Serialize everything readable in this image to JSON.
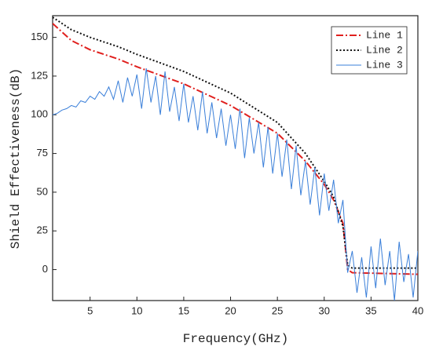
{
  "chart_data": {
    "type": "line",
    "xlabel": "Frequency(GHz)",
    "ylabel": "Shield Effectiveness(dB)",
    "xlim": [
      1,
      40
    ],
    "ylim": [
      -20,
      164
    ],
    "xticks": [
      5,
      10,
      15,
      20,
      25,
      30,
      35,
      40
    ],
    "yticks": [
      0,
      25,
      50,
      75,
      100,
      125,
      150
    ],
    "legend": "upper right",
    "series": [
      {
        "name": "Line 1",
        "color": "#e0201e",
        "dash": "dashdot",
        "x": [
          1,
          3,
          5,
          8,
          10,
          15,
          20,
          25,
          28,
          30,
          31,
          32,
          32.5,
          33,
          40
        ],
        "values": [
          159,
          148,
          142,
          136,
          131,
          120,
          106,
          88,
          70,
          55,
          45,
          30,
          0,
          -2,
          -3
        ]
      },
      {
        "name": "Line 2",
        "color": "#111111",
        "dash": "dotted",
        "x": [
          1,
          3,
          5,
          8,
          10,
          15,
          20,
          25,
          28,
          30,
          31,
          32,
          32.5,
          33,
          40
        ],
        "values": [
          163,
          155,
          150,
          144,
          139,
          128,
          114,
          95,
          75,
          57,
          47,
          28,
          3,
          1,
          1
        ]
      },
      {
        "name": "Line 3",
        "color": "#3a7fd9",
        "dash": "solid",
        "x": [
          1,
          1.5,
          2,
          2.5,
          3,
          3.5,
          4,
          4.5,
          5,
          5.5,
          6,
          6.5,
          7,
          7.5,
          8,
          8.5,
          9,
          9.5,
          10,
          10.5,
          11,
          11.5,
          12,
          12.5,
          13,
          13.5,
          14,
          14.5,
          15,
          15.5,
          16,
          16.5,
          17,
          17.5,
          18,
          18.5,
          19,
          19.5,
          20,
          20.5,
          21,
          21.5,
          22,
          22.5,
          23,
          23.5,
          24,
          24.5,
          25,
          25.5,
          26,
          26.5,
          27,
          27.5,
          28,
          28.5,
          29,
          29.5,
          30,
          30.5,
          31,
          31.5,
          32,
          32.5,
          33,
          33.5,
          34,
          34.5,
          35,
          35.5,
          36,
          36.5,
          37,
          37.5,
          38,
          38.5,
          39,
          39.5,
          40
        ],
        "values": [
          100,
          101,
          103,
          104,
          106,
          105,
          109,
          108,
          112,
          110,
          115,
          112,
          118,
          110,
          122,
          108,
          124,
          112,
          126,
          104,
          130,
          108,
          125,
          100,
          128,
          102,
          118,
          96,
          120,
          95,
          112,
          90,
          115,
          88,
          108,
          85,
          104,
          80,
          100,
          78,
          104,
          72,
          98,
          75,
          95,
          66,
          92,
          62,
          88,
          60,
          84,
          52,
          80,
          48,
          70,
          42,
          66,
          35,
          62,
          38,
          58,
          30,
          45,
          -2,
          12,
          -15,
          8,
          -18,
          15,
          -12,
          20,
          -10,
          12,
          -20,
          18,
          -8,
          10,
          -18,
          12
        ]
      }
    ]
  }
}
